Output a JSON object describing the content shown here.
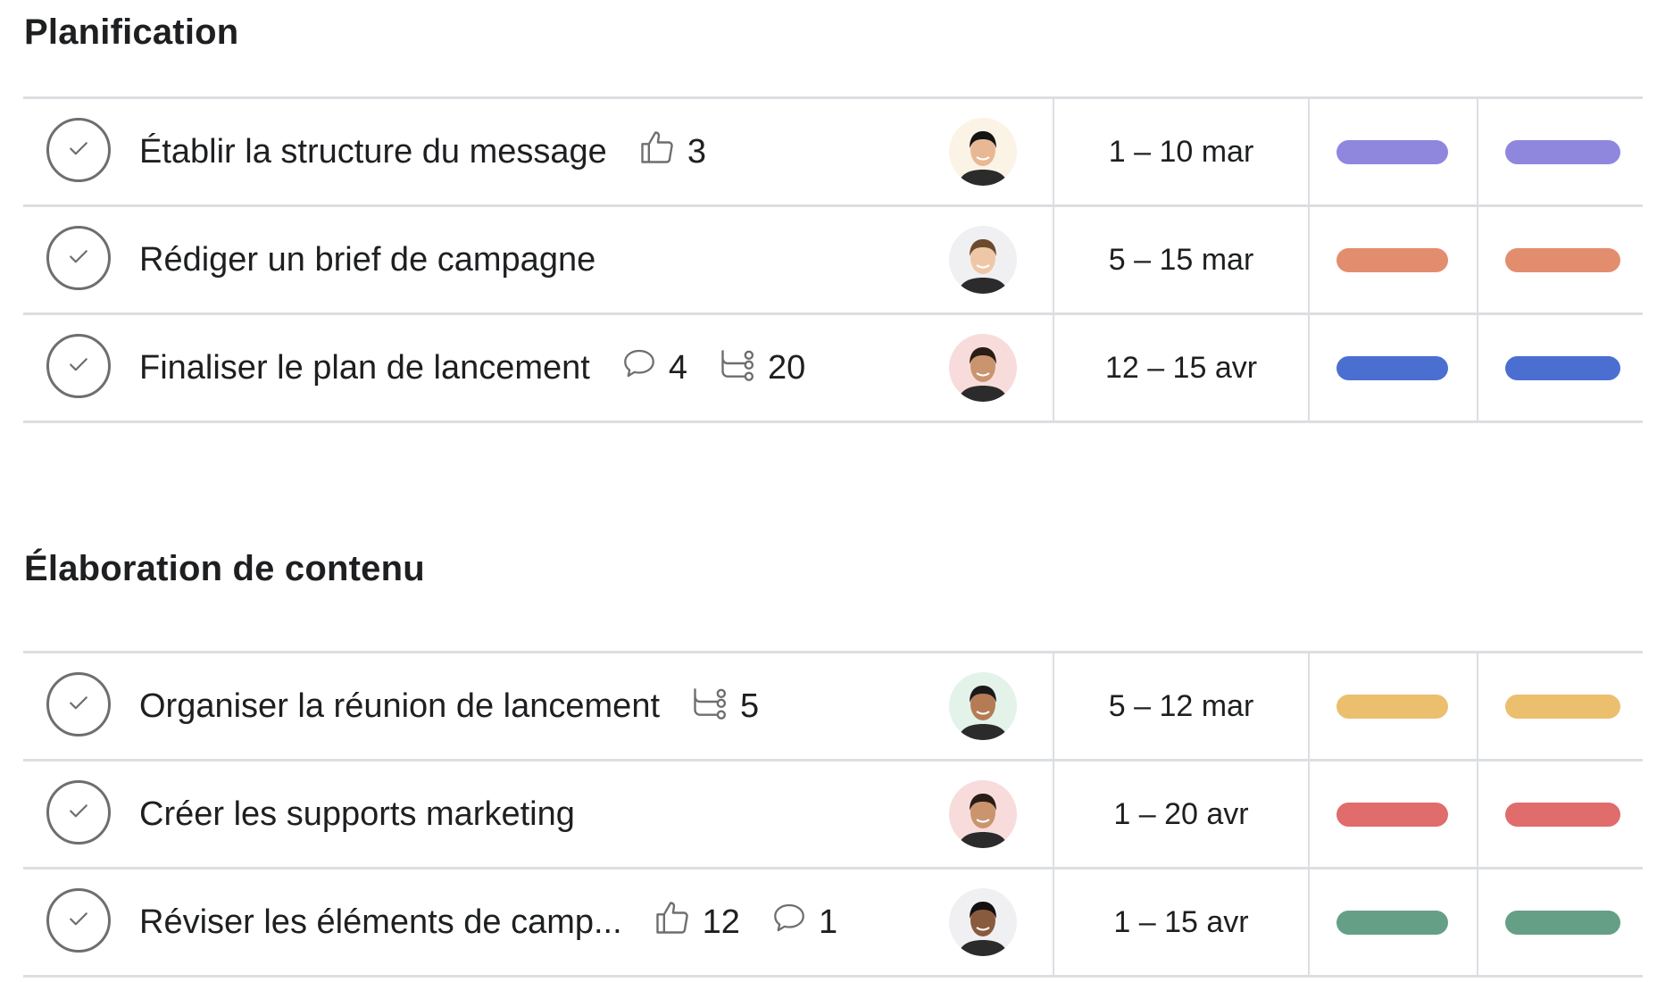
{
  "sections": [
    {
      "title": "Planification",
      "tasks": [
        {
          "name": "Établir la structure du message",
          "likes": "3",
          "date": "1 – 10 mar",
          "color": "#8f87de",
          "skin": "#e8b894",
          "hair": "#141414",
          "bg": "#fbf3e6"
        },
        {
          "name": "Rédiger un brief de campagne",
          "date": "5 – 15 mar",
          "color": "#e38d6f",
          "skin": "#efc7a6",
          "hair": "#6b4a2f",
          "bg": "#f0f0f2"
        },
        {
          "name": "Finaliser le plan de lancement",
          "comments": "4",
          "subtasks": "20",
          "date": "12 – 15 avr",
          "color": "#4b6fd1",
          "skin": "#c9946e",
          "hair": "#2a1d15",
          "bg": "#f8dcdc"
        }
      ]
    },
    {
      "title": "Élaboration de contenu",
      "tasks": [
        {
          "name": "Organiser la réunion de lancement",
          "subtasks": "5",
          "date": "5 – 12 mar",
          "color": "#ebbf6e",
          "skin": "#b57b55",
          "hair": "#1a1a1a",
          "bg": "#e3f3ea"
        },
        {
          "name": "Créer les supports marketing",
          "date": "1 – 20 avr",
          "color": "#e06c6c",
          "skin": "#c9946e",
          "hair": "#2a1d15",
          "bg": "#f8dcdc"
        },
        {
          "name": "Réviser les éléments de camp...",
          "likes": "12",
          "comments": "1",
          "date": "1 – 15 avr",
          "color": "#659f86",
          "skin": "#8a5a3e",
          "hair": "#151010",
          "bg": "#f0f0f2"
        }
      ]
    }
  ]
}
